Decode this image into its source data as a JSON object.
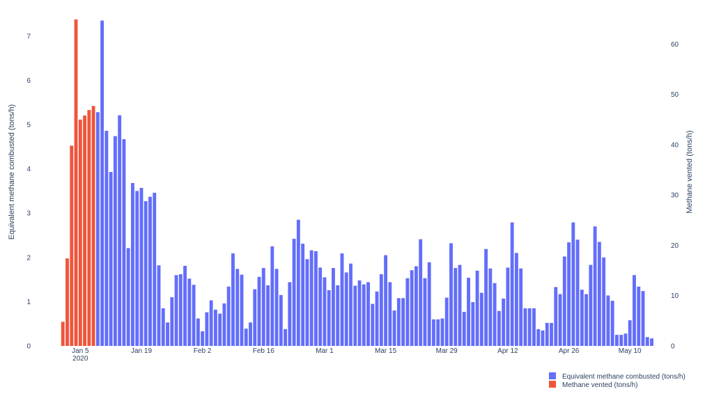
{
  "chart_data": {
    "type": "bar",
    "x_start": "2019-12-31",
    "x_end": "2020-05-13",
    "y_left": {
      "label": "Equivalent methane combusted (tons/h)",
      "range": [
        0,
        7.5
      ],
      "ticks": [
        "0",
        "1",
        "2",
        "3",
        "4",
        "5",
        "6",
        "7"
      ]
    },
    "y_right": {
      "label": "Methane vented (tons/h)",
      "range": [
        0,
        66
      ],
      "ticks": [
        "0",
        "10",
        "20",
        "30",
        "40",
        "50",
        "60"
      ]
    },
    "x_ticks": [
      {
        "label": "Jan 5",
        "date": "2020-01-05",
        "sub": "2020"
      },
      {
        "label": "Jan 19",
        "date": "2020-01-19"
      },
      {
        "label": "Feb 2",
        "date": "2020-02-02"
      },
      {
        "label": "Feb 16",
        "date": "2020-02-16"
      },
      {
        "label": "Mar 1",
        "date": "2020-03-01"
      },
      {
        "label": "Mar 15",
        "date": "2020-03-15"
      },
      {
        "label": "Mar 29",
        "date": "2020-03-29"
      },
      {
        "label": "Apr 12",
        "date": "2020-04-12"
      },
      {
        "label": "Apr 26",
        "date": "2020-04-26"
      },
      {
        "label": "May 10",
        "date": "2020-05-10"
      }
    ],
    "grid": false,
    "legend_position": "bottom-right",
    "series": [
      {
        "name": "Methane vented (tons/h)",
        "color": "#ef553b",
        "axis": "right",
        "dates": [
          "2020-01-01",
          "2020-01-02",
          "2020-01-03",
          "2020-01-04",
          "2020-01-05",
          "2020-01-06",
          "2020-01-07",
          "2020-01-08"
        ],
        "values": [
          4.8,
          17.4,
          39.8,
          64.9,
          45.0,
          45.8,
          46.9,
          47.7
        ]
      },
      {
        "name": "Equivalent methane combusted (tons/h)",
        "color": "#636efa",
        "axis": "left",
        "start_date": "2020-01-09",
        "values": [
          5.28,
          7.35,
          4.86,
          3.93,
          4.74,
          5.21,
          4.67,
          2.21,
          3.68,
          3.5,
          3.57,
          3.27,
          3.37,
          3.46,
          1.82,
          0.85,
          0.53,
          1.1,
          1.6,
          1.62,
          1.81,
          1.52,
          1.38,
          0.62,
          0.33,
          0.76,
          1.03,
          0.82,
          0.73,
          0.96,
          1.34,
          2.09,
          1.74,
          1.61,
          0.39,
          0.53,
          1.28,
          1.56,
          1.76,
          1.37,
          2.25,
          1.74,
          1.15,
          0.38,
          1.44,
          2.42,
          2.85,
          2.31,
          1.96,
          2.16,
          2.14,
          1.77,
          1.55,
          1.26,
          1.76,
          1.37,
          2.09,
          1.66,
          1.86,
          1.36,
          1.48,
          1.39,
          1.44,
          0.95,
          1.23,
          1.62,
          2.05,
          1.44,
          0.8,
          1.08,
          1.08,
          1.53,
          1.71,
          1.8,
          2.41,
          1.53,
          1.89,
          0.6,
          0.6,
          0.62,
          1.09,
          2.32,
          1.76,
          1.83,
          0.77,
          1.54,
          0.99,
          1.7,
          1.2,
          2.19,
          1.75,
          1.42,
          0.79,
          1.07,
          1.77,
          2.79,
          2.1,
          1.75,
          0.85,
          0.85,
          0.85,
          0.38,
          0.35,
          0.52,
          0.52,
          1.33,
          1.17,
          2.02,
          2.34,
          2.79,
          2.4,
          1.27,
          1.17,
          1.83,
          2.7,
          2.35,
          2.0,
          1.14,
          1.02,
          0.25,
          0.25,
          0.28,
          0.58,
          1.6,
          1.34,
          1.24,
          0.2,
          0.17
        ]
      }
    ]
  }
}
